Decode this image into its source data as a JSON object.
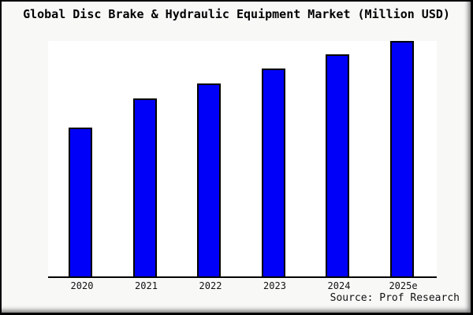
{
  "title": "Global Disc Brake & Hydraulic Equipment Market (Million USD)",
  "source": "Source: Prof Research",
  "colors": {
    "background": "#f8f8f7",
    "plot_background": "#ffffff",
    "bar_fill": "#0000f8",
    "bar_border": "#000000",
    "axis": "#000000",
    "text": "#000000"
  },
  "chart_data": {
    "type": "bar",
    "title": "Global Disc Brake & Hydraulic Equipment Market (Million USD)",
    "categories": [
      "2020",
      "2021",
      "2022",
      "2023",
      "2024",
      "2025e"
    ],
    "values": [
      63.1,
      75.5,
      81.8,
      88.3,
      94.2,
      100
    ],
    "value_note": "No y-axis scale is shown in the image; values are relative bar heights with the tallest bar (2025e) = 100.",
    "xlabel": "",
    "ylabel": "",
    "ylim": [
      0,
      100.3
    ],
    "grid": false,
    "legend_position": "none",
    "y_axis_labels_visible": false,
    "source_label": "Source: Prof Research"
  }
}
